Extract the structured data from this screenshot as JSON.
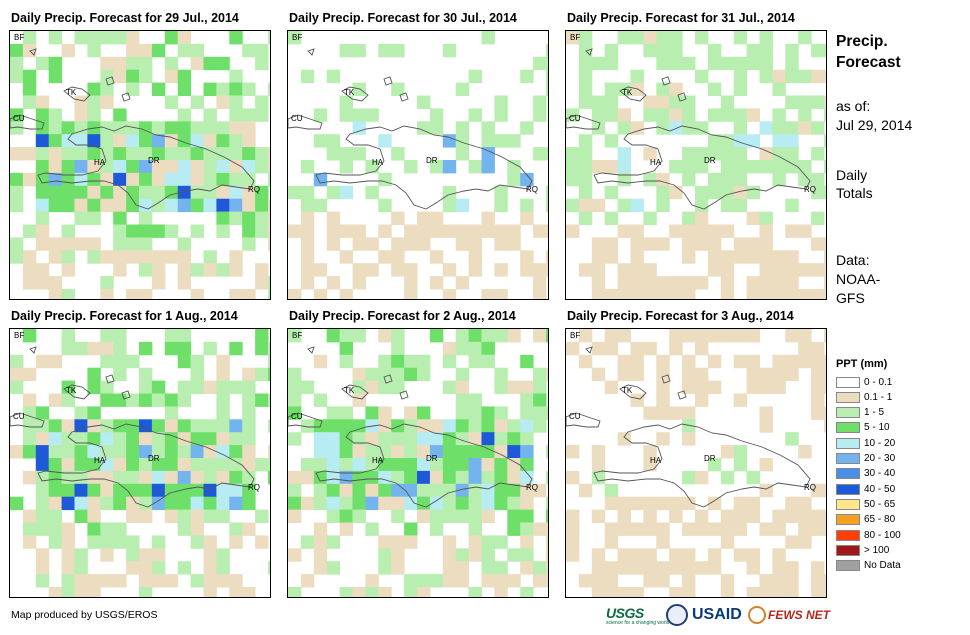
{
  "panels": [
    {
      "title": "Daily Precip. Forecast for 29 Jul., 2014",
      "day_index": 0
    },
    {
      "title": "Daily Precip. Forecast for 30 Jul., 2014",
      "day_index": 1
    },
    {
      "title": "Daily Precip. Forecast for 31 Jul., 2014",
      "day_index": 2
    },
    {
      "title": "Daily Precip. Forecast for 1 Aug., 2014",
      "day_index": 3
    },
    {
      "title": "Daily Precip. Forecast for 2 Aug., 2014",
      "day_index": 4
    },
    {
      "title": "Daily Precip. Forecast for 3 Aug., 2014",
      "day_index": 5
    }
  ],
  "map_labels": {
    "bf": "BF",
    "cu": "CU",
    "tk": "TK",
    "ha": "HA",
    "dr": "DR",
    "rq": "RQ"
  },
  "sidebar": {
    "title_line1": "Precip.",
    "title_line2": "Forecast",
    "as_of_label": "as of:",
    "as_of_date": "Jul 29, 2014",
    "totals_line1": "Daily",
    "totals_line2": "Totals",
    "data_line1": "Data:",
    "data_line2": "NOAA-",
    "data_line3": "GFS"
  },
  "legend": {
    "title": "PPT (mm)",
    "items": [
      {
        "label": "0 - 0.1",
        "color": "#ffffff"
      },
      {
        "label": "0.1 - 1",
        "color": "#ecdcc0"
      },
      {
        "label": "1 - 5",
        "color": "#b8eeb0"
      },
      {
        "label": "5 - 10",
        "color": "#6ee06a"
      },
      {
        "label": "10 - 20",
        "color": "#b6ecf2"
      },
      {
        "label": "20 - 30",
        "color": "#74b4ee"
      },
      {
        "label": "30 - 40",
        "color": "#4a8ee8"
      },
      {
        "label": "40 - 50",
        "color": "#1e5ad8"
      },
      {
        "label": "50 - 65",
        "color": "#ffe68a"
      },
      {
        "label": "65 - 80",
        "color": "#f5a020"
      },
      {
        "label": "80 - 100",
        "color": "#ff4000"
      },
      {
        "label": "> 100",
        "color": "#a01818"
      },
      {
        "label": "No Data",
        "color": "#a0a0a0"
      }
    ]
  },
  "footer": {
    "credit": "Map produced by USGS/EROS",
    "usgs": "USGS",
    "usgs_tagline": "science for a changing world",
    "usaid": "USAID",
    "fews": "FEWS NET"
  }
}
